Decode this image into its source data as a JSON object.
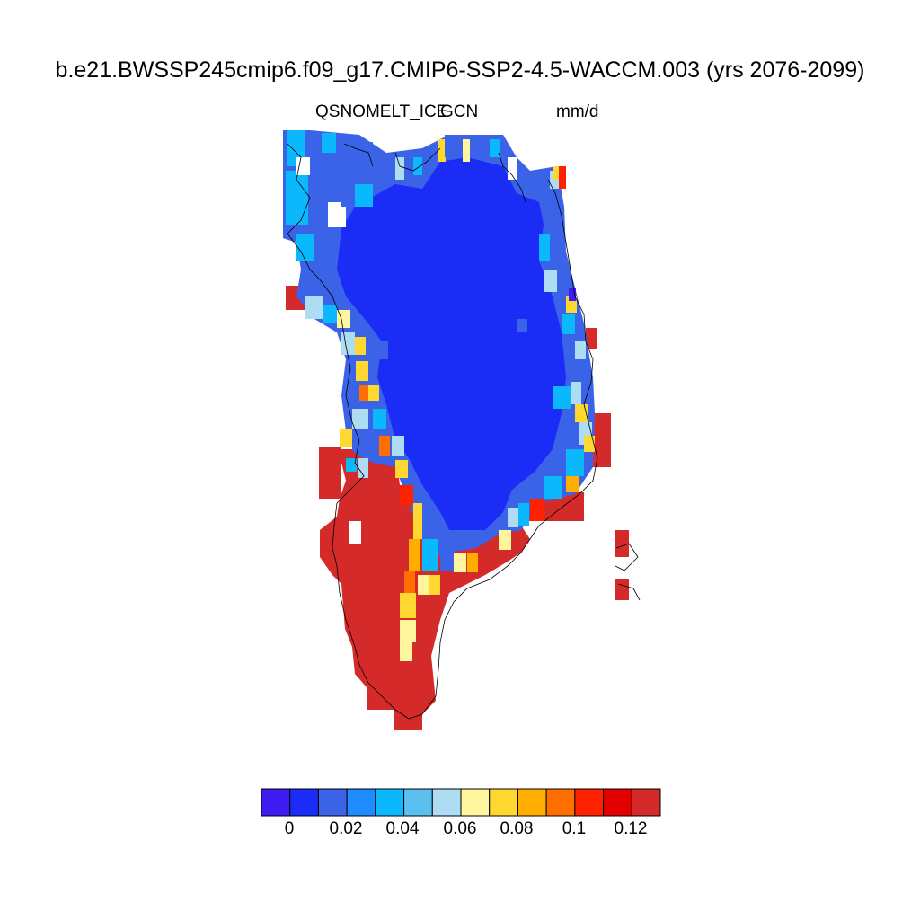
{
  "title": "b.e21.BWSSP245cmip6.f09_g17.CMIP6-SSP2-4.5-WACCM.003 (yrs 2076-2099)",
  "subtitle_left": "QSNOMELT_ICE",
  "subtitle_center": "GCN",
  "subtitle_right": "mm/d",
  "colorbar": {
    "colors": [
      "#3f1cf2",
      "#1a2cf5",
      "#3a63e8",
      "#1e8cff",
      "#0bb8fb",
      "#5bc0f0",
      "#aedcf2",
      "#fff59c",
      "#fed731",
      "#ffae00",
      "#ff6f00",
      "#ff2200",
      "#e20000",
      "#d42a2a"
    ],
    "tick_labels": [
      "0",
      "0.02",
      "0.04",
      "0.06",
      "0.08",
      "0.1",
      "0.12"
    ]
  },
  "map_colors": {
    "interior": "#1a2cf5",
    "margin_mid": "#3a63e8",
    "coast_light": "#0bb8fb",
    "coast_pale": "#aedcf2",
    "coast_yellow": "#fff59c",
    "coast_orange": "#ff6f00",
    "south_red": "#d42a2a",
    "coastline": "#000000"
  }
}
